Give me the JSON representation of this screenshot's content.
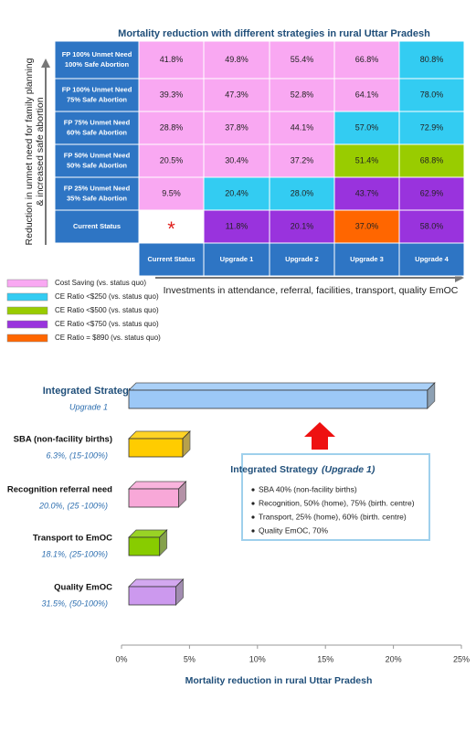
{
  "table": {
    "title": "Mortality reduction with different strategies in rural Uttar Pradesh",
    "y_label_lines": [
      "Reduction in unmet need for family planning",
      "& increased safe abortion"
    ],
    "x_label": "Investments in attendance, referral, facilities, transport, quality EmOC",
    "columns": [
      "Current Status",
      "Upgrade 1",
      "Upgrade 2",
      "Upgrade 3",
      "Upgrade 4"
    ],
    "rows": [
      {
        "header": [
          "FP 100% Unmet Need",
          "100% Safe Abortion"
        ],
        "cells": [
          "41.8%",
          "49.8%",
          "55.4%",
          "66.8%",
          "80.8%"
        ],
        "fills": [
          "#f9a8f2",
          "#f9a8f2",
          "#f9a8f2",
          "#f9a8f2",
          "#33ccf2"
        ]
      },
      {
        "header": [
          "FP 100% Unmet Need",
          "75% Safe Abortion"
        ],
        "cells": [
          "39.3%",
          "47.3%",
          "52.8%",
          "64.1%",
          "78.0%"
        ],
        "fills": [
          "#f9a8f2",
          "#f9a8f2",
          "#f9a8f2",
          "#f9a8f2",
          "#33ccf2"
        ]
      },
      {
        "header": [
          "FP 75% Unmet Need",
          "60% Safe Abortion"
        ],
        "cells": [
          "28.8%",
          "37.8%",
          "44.1%",
          "57.0%",
          "72.9%"
        ],
        "fills": [
          "#f9a8f2",
          "#f9a8f2",
          "#f9a8f2",
          "#33ccf2",
          "#33ccf2"
        ]
      },
      {
        "header": [
          "FP 50% Unmet Need",
          "50% Safe Abortion"
        ],
        "cells": [
          "20.5%",
          "30.4%",
          "37.2%",
          "51.4%",
          "68.8%"
        ],
        "fills": [
          "#f9a8f2",
          "#f9a8f2",
          "#f9a8f2",
          "#99cc00",
          "#99cc00"
        ]
      },
      {
        "header": [
          "FP 25% Unmet Need",
          "35% Safe Abortion"
        ],
        "cells": [
          "9.5%",
          "20.4%",
          "28.0%",
          "43.7%",
          "62.9%"
        ],
        "fills": [
          "#f9a8f2",
          "#33ccf2",
          "#33ccf2",
          "#9933dd",
          "#9933dd"
        ]
      },
      {
        "header": [
          "Current Status"
        ],
        "cells": [
          "*",
          "11.8%",
          "20.1%",
          "37.0%",
          "58.0%"
        ],
        "fills": [
          "#ffffff",
          "#9933dd",
          "#9933dd",
          "#ff6600",
          "#9933dd"
        ]
      }
    ],
    "legend": [
      {
        "label": "Cost Saving (vs. status quo)",
        "color": "#f9a8f2"
      },
      {
        "label": "CE Ratio <$250 (vs. status quo)",
        "color": "#33ccf2"
      },
      {
        "label": "CE Ratio <$500 (vs. status quo)",
        "color": "#99cc00"
      },
      {
        "label": "CE Ratio <$750 (vs. status quo)",
        "color": "#9933dd"
      },
      {
        "label": "CE Ratio = $890 (vs. status quo)",
        "color": "#ff6600"
      }
    ]
  },
  "chart_data": {
    "type": "bar",
    "orientation": "horizontal",
    "categories": [
      "Integrated Strategy",
      "SBA (non-facility births)",
      "Recognition referral need",
      "Transport to EmOC",
      "Quality EmOC"
    ],
    "category_notes": [
      "Upgrade 1",
      "6.3%, (15-100%)",
      "20.0%, (25 -100%)",
      "18.1%, (25-100%)",
      "31.5%, (50-100%)"
    ],
    "values": [
      22.5,
      4.5,
      4.2,
      2.8,
      4.0
    ],
    "colors": [
      "#9cc8f6",
      "#ffcc00",
      "#f8a8d8",
      "#88cc00",
      "#cc99ee"
    ],
    "xlim": [
      0,
      25
    ],
    "xticks": [
      {
        "value": 0,
        "label": "0%"
      },
      {
        "value": 5,
        "label": "5%"
      },
      {
        "value": 10,
        "label": "10%"
      },
      {
        "value": 15,
        "label": "15%"
      },
      {
        "value": 20,
        "label": "20%"
      },
      {
        "value": 25,
        "label": "25%"
      }
    ],
    "x_label": "Mortality reduction in rural Uttar Pradesh",
    "callout": {
      "title": "Integrated Strategy",
      "title_note": "(Upgrade 1)",
      "items": [
        "SBA 40% (non-facility births)",
        "Recognition, 50% (home), 75% (birth. centre)",
        "Transport, 25% (home), 60% (birth. centre)",
        "Quality EmOC, 70%"
      ]
    }
  }
}
